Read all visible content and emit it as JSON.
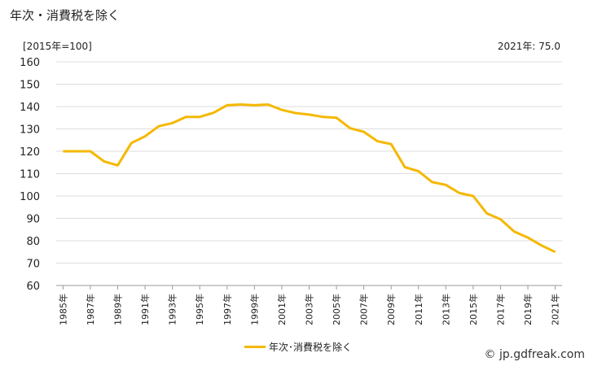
{
  "header": {
    "title": "年次・消費税を除く",
    "unit": "[2015年=100]",
    "latest": "2021年: 75.0"
  },
  "footer": {
    "credit": "© jp.gdfreak.com"
  },
  "colors": {
    "line": "#f5b800",
    "grid": "#dddddd",
    "axis": "#999999"
  },
  "chart_data": {
    "type": "line",
    "title": "年次・消費税を除く",
    "ylabel": "[2015年=100]",
    "ylim": [
      60,
      160
    ],
    "yticks": [
      60,
      70,
      80,
      90,
      100,
      110,
      120,
      130,
      140,
      150,
      160
    ],
    "grid": true,
    "legend_position": "bottom",
    "x_tick_labels": [
      "1985年",
      "1987年",
      "1989年",
      "1991年",
      "1993年",
      "1995年",
      "1997年",
      "1999年",
      "2001年",
      "2003年",
      "2005年",
      "2007年",
      "2009年",
      "2011年",
      "2013年",
      "2015年",
      "2017年",
      "2019年",
      "2021年"
    ],
    "x": [
      1985,
      1986,
      1987,
      1988,
      1989,
      1990,
      1991,
      1992,
      1993,
      1994,
      1995,
      1996,
      1997,
      1998,
      1999,
      2000,
      2001,
      2002,
      2003,
      2004,
      2005,
      2006,
      2007,
      2008,
      2009,
      2010,
      2011,
      2012,
      2013,
      2014,
      2015,
      2016,
      2017,
      2018,
      2019,
      2020,
      2021
    ],
    "series": [
      {
        "name": "年次･消費税を除く",
        "values": [
          120.0,
          120.0,
          120.0,
          115.5,
          113.7,
          123.7,
          126.7,
          131.2,
          132.6,
          135.4,
          135.4,
          137.2,
          140.6,
          140.9,
          140.6,
          140.9,
          138.5,
          137.1,
          136.4,
          135.4,
          135.0,
          130.3,
          128.7,
          124.5,
          123.2,
          112.9,
          111.1,
          106.2,
          105.0,
          101.3,
          100.0,
          92.2,
          89.6,
          84.1,
          81.4,
          77.9,
          75.0
        ]
      }
    ]
  }
}
